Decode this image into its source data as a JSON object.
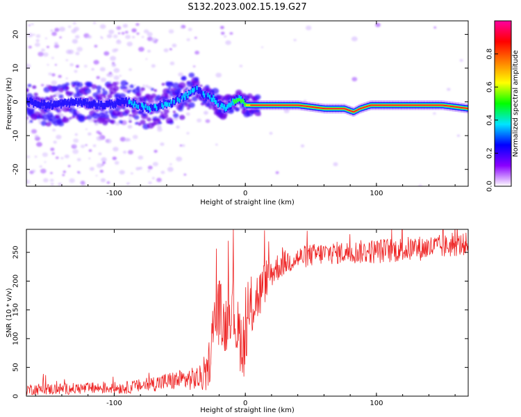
{
  "title": "S132.2023.002.15.19.G27",
  "chart_data": [
    {
      "type": "heatmap",
      "xlabel": "Height of straight line (km)",
      "ylabel": "Frequency (Hz)",
      "xlim": [
        -167,
        170
      ],
      "ylim": [
        -25,
        24
      ],
      "xticks": [
        -100,
        0,
        100
      ],
      "yticks": [
        -20,
        -10,
        0,
        10,
        20
      ],
      "colorbar": {
        "label": "Normalized spectral amplitude",
        "range": [
          0,
          1
        ],
        "ticks": [
          "0.0",
          "0.2",
          "0.4",
          "0.6",
          "0.8"
        ],
        "colormap": [
          "#ffffff",
          "#8a00ff",
          "#0000ff",
          "#00e5ff",
          "#00ff00",
          "#ffff00",
          "#ff8000",
          "#ff0000",
          "#ff00a0"
        ]
      },
      "ridge": {
        "x": [
          -167,
          -150,
          -130,
          -110,
          -90,
          -75,
          -65,
          -55,
          -45,
          -38,
          -33,
          -25,
          -20,
          -15,
          -10,
          -5,
          0,
          5,
          20,
          40,
          60,
          75,
          82,
          87,
          95,
          120,
          150,
          170
        ],
        "frequency": [
          0,
          -1,
          0,
          -1,
          0,
          -2,
          -1,
          0,
          2,
          4,
          2,
          1,
          -1,
          -2,
          0,
          1,
          -1,
          -1,
          -1,
          -1,
          -2,
          -2,
          -3,
          -2,
          -1,
          -1,
          -1,
          -2
        ],
        "amplitude": [
          0.3,
          0.3,
          0.35,
          0.4,
          0.45,
          0.5,
          0.5,
          0.45,
          0.5,
          0.5,
          0.55,
          0.6,
          0.55,
          0.5,
          0.6,
          0.6,
          0.75,
          0.85,
          0.9,
          0.85,
          0.9,
          0.9,
          0.85,
          0.85,
          0.9,
          0.9,
          0.9,
          0.9
        ]
      }
    },
    {
      "type": "line",
      "xlabel": "Height of straight line (km)",
      "ylabel": "SNR (10 * v/v)",
      "xlim": [
        -167,
        170
      ],
      "ylim": [
        0,
        290
      ],
      "xticks": [
        -100,
        0,
        100
      ],
      "yticks": [
        0,
        50,
        100,
        150,
        200,
        250
      ],
      "series": [
        {
          "name": "SNR",
          "color": "#ee2222",
          "x": [
            -167,
            -150,
            -130,
            -110,
            -90,
            -80,
            -70,
            -60,
            -50,
            -40,
            -30,
            -26,
            -24,
            -20,
            -16,
            -10,
            -6,
            -2,
            0,
            4,
            8,
            12,
            16,
            20,
            25,
            30,
            40,
            50,
            60,
            80,
            100,
            120,
            140,
            160,
            170
          ],
          "mean": [
            12,
            12,
            13,
            14,
            15,
            18,
            22,
            25,
            28,
            30,
            32,
            80,
            130,
            150,
            120,
            160,
            110,
            95,
            90,
            150,
            170,
            180,
            205,
            215,
            225,
            232,
            240,
            245,
            248,
            250,
            252,
            255,
            258,
            262,
            265
          ],
          "noise": [
            10,
            10,
            10,
            10,
            11,
            12,
            14,
            16,
            18,
            20,
            25,
            50,
            60,
            60,
            55,
            50,
            60,
            60,
            60,
            55,
            50,
            45,
            35,
            28,
            25,
            22,
            20,
            20,
            20,
            20,
            22,
            22,
            22,
            20,
            20
          ]
        }
      ]
    }
  ]
}
